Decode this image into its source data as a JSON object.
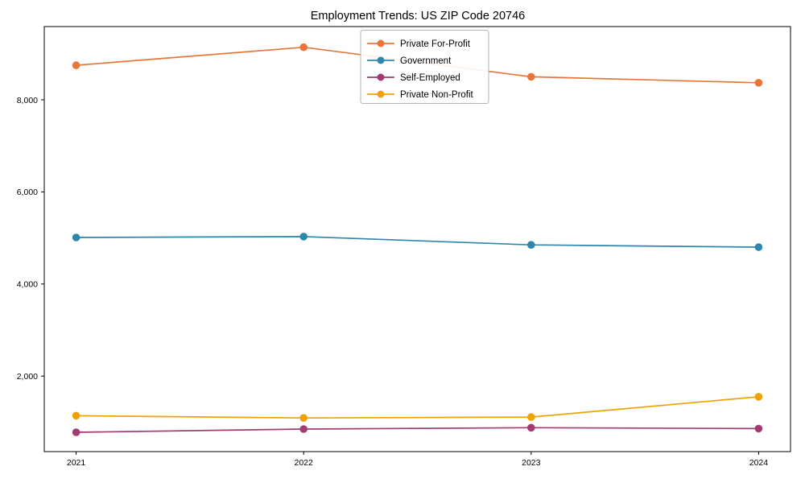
{
  "figure": {
    "background": "#ffffff",
    "axis_color": "#000000",
    "text_color": "#000000",
    "legend_border_color": "#b3b3b3"
  },
  "chart_data": {
    "type": "line",
    "title": "Employment Trends: US ZIP Code 20746",
    "xlabel": "",
    "ylabel": "",
    "categories": [
      "2021",
      "2022",
      "2023",
      "2024"
    ],
    "x": [
      2021,
      2022,
      2023,
      2024
    ],
    "series": [
      {
        "name": "Private For-Profit",
        "color": "#E8763A",
        "values": [
          8750,
          9140,
          8500,
          8370
        ]
      },
      {
        "name": "Government",
        "color": "#2E86AB",
        "values": [
          5010,
          5030,
          4850,
          4800
        ]
      },
      {
        "name": "Self-Employed",
        "color": "#A23B72",
        "values": [
          780,
          850,
          880,
          860
        ]
      },
      {
        "name": "Private Non-Profit",
        "color": "#F2A104",
        "values": [
          1140,
          1090,
          1110,
          1550
        ]
      }
    ],
    "xlim": [
      2020.86,
      2024.14
    ],
    "ylim": [
      360,
      9590
    ],
    "yticks": [
      2000,
      4000,
      6000,
      8000
    ],
    "ytick_labels": [
      "2,000",
      "4,000",
      "6,000",
      "8,000"
    ],
    "grid": false,
    "marker": "circle",
    "legend": {
      "position": "upper-center",
      "entries": [
        "Private For-Profit",
        "Government",
        "Self-Employed",
        "Private Non-Profit"
      ]
    }
  }
}
